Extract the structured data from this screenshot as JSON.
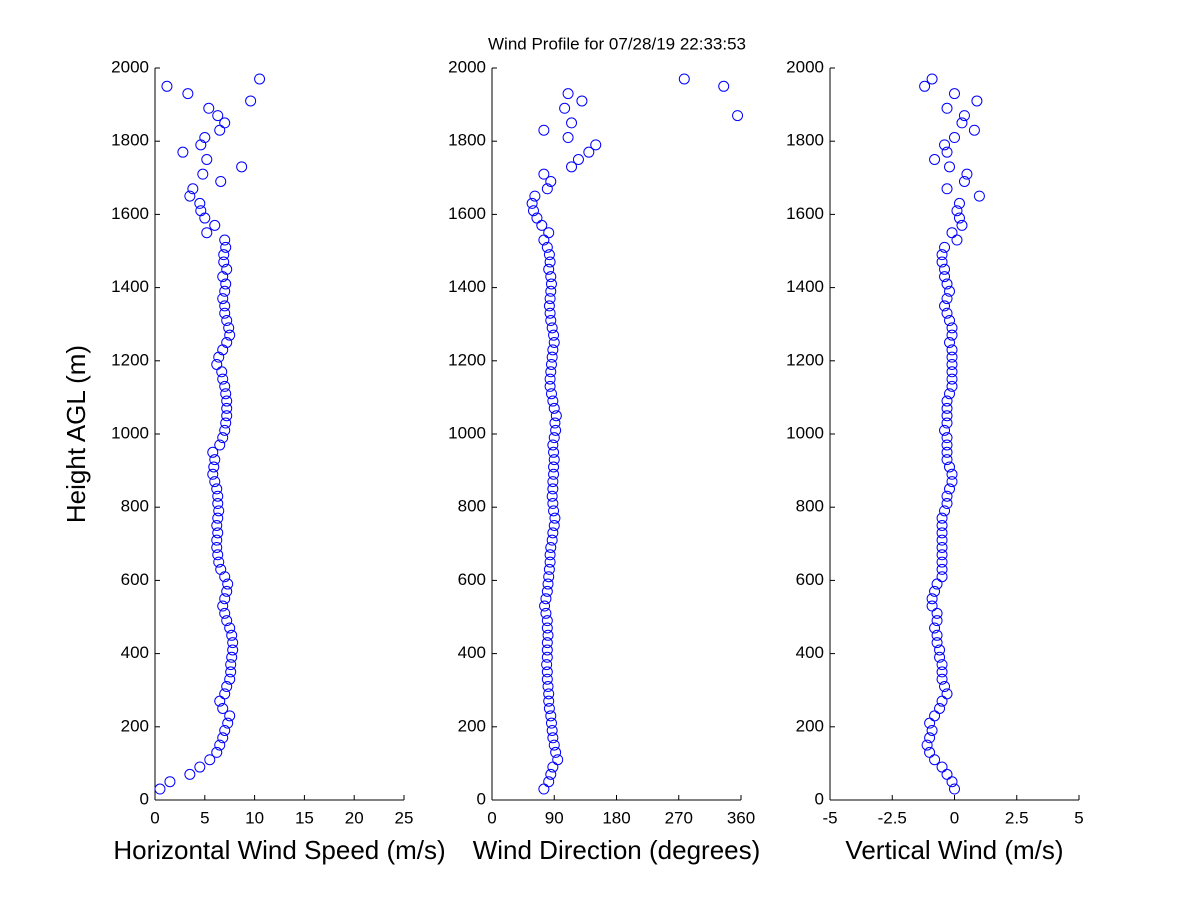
{
  "chart_data": [
    {
      "type": "scatter",
      "title": "Wind Profile for  07/28/19 22:33:53",
      "xlabel": "Horizontal Wind Speed (m/s)",
      "ylabel": "Height AGL (m)",
      "color": "#0000ff",
      "xlim": [
        0,
        25
      ],
      "xticks": [
        0,
        5,
        10,
        15,
        20,
        25
      ],
      "ylim": [
        0,
        2000
      ],
      "yticks": [
        0,
        200,
        400,
        600,
        800,
        1000,
        1200,
        1400,
        1600,
        1800,
        2000
      ],
      "x": [
        0.5,
        1.5,
        3.5,
        4.5,
        5.5,
        6.2,
        6.5,
        6.8,
        7,
        7.3,
        7.5,
        6.8,
        6.5,
        7,
        7.2,
        7.5,
        7.6,
        7.6,
        7.7,
        7.8,
        7.8,
        7.7,
        7.5,
        7.2,
        7.0,
        6.8,
        7,
        7.2,
        7.3,
        7,
        6.6,
        6.4,
        6.3,
        6.2,
        6.2,
        6.3,
        6.2,
        6.3,
        6.4,
        6.3,
        6.3,
        6.2,
        6.0,
        5.8,
        5.9,
        6.0,
        5.8,
        6.5,
        6.8,
        7,
        7.1,
        7.2,
        7.2,
        7.2,
        7.1,
        7.0,
        6.8,
        6.7,
        6.2,
        6.4,
        6.8,
        7.2,
        7.5,
        7.4,
        7.2,
        7,
        7,
        6.8,
        7,
        7.1,
        6.8,
        7.2,
        6.9,
        6.9,
        7.1,
        7.0,
        5.2,
        6.0,
        5.0,
        4.6,
        4.5,
        3.5,
        3.8,
        6.6,
        4.8,
        8.7,
        5.2,
        2.8,
        4.6,
        5.0,
        6.5,
        7.0,
        6.3,
        5.4,
        9.6,
        3.3,
        1.2,
        10.5
      ],
      "y": [
        30,
        50,
        70,
        90,
        110,
        130,
        150,
        170,
        190,
        210,
        230,
        250,
        270,
        290,
        310,
        330,
        350,
        370,
        390,
        410,
        430,
        450,
        470,
        490,
        510,
        530,
        550,
        570,
        590,
        610,
        630,
        650,
        670,
        690,
        710,
        730,
        750,
        770,
        790,
        810,
        830,
        850,
        870,
        890,
        910,
        930,
        950,
        970,
        990,
        1010,
        1030,
        1050,
        1070,
        1090,
        1110,
        1130,
        1150,
        1170,
        1190,
        1210,
        1230,
        1250,
        1270,
        1290,
        1310,
        1330,
        1350,
        1370,
        1390,
        1410,
        1430,
        1450,
        1470,
        1490,
        1510,
        1530,
        1550,
        1570,
        1590,
        1610,
        1630,
        1650,
        1670,
        1690,
        1710,
        1730,
        1750,
        1770,
        1790,
        1810,
        1830,
        1850,
        1870,
        1890,
        1910,
        1930,
        1950,
        1970
      ]
    },
    {
      "type": "scatter",
      "xlabel": "Wind Direction (degrees)",
      "color": "#0000ff",
      "xlim": [
        0,
        360
      ],
      "xticks": [
        0,
        90,
        180,
        270,
        360
      ],
      "ylim": [
        0,
        2000
      ],
      "yticks": [
        0,
        200,
        400,
        600,
        800,
        1000,
        1200,
        1400,
        1600,
        1800,
        2000
      ],
      "x": [
        75,
        82,
        85,
        88,
        95,
        92,
        90,
        88,
        87,
        86,
        85,
        83,
        82,
        82,
        81,
        80,
        80,
        79,
        80,
        80,
        80,
        81,
        80,
        80,
        78,
        76,
        78,
        80,
        81,
        82,
        83,
        84,
        84,
        85,
        87,
        88,
        90,
        91,
        89,
        88,
        87,
        88,
        88,
        89,
        89,
        90,
        89,
        88,
        90,
        92,
        91,
        93,
        90,
        88,
        86,
        84,
        84,
        85,
        86,
        87,
        88,
        90,
        89,
        87,
        85,
        84,
        83,
        84,
        85,
        86,
        85,
        82,
        84,
        83,
        80,
        75,
        82,
        72,
        65,
        60,
        58,
        62,
        80,
        85,
        75,
        115,
        125,
        140,
        150,
        110,
        75,
        115,
        355,
        105,
        130,
        110,
        335,
        278
      ],
      "y": [
        30,
        50,
        70,
        90,
        110,
        130,
        150,
        170,
        190,
        210,
        230,
        250,
        270,
        290,
        310,
        330,
        350,
        370,
        390,
        410,
        430,
        450,
        470,
        490,
        510,
        530,
        550,
        570,
        590,
        610,
        630,
        650,
        670,
        690,
        710,
        730,
        750,
        770,
        790,
        810,
        830,
        850,
        870,
        890,
        910,
        930,
        950,
        970,
        990,
        1010,
        1030,
        1050,
        1070,
        1090,
        1110,
        1130,
        1150,
        1170,
        1190,
        1210,
        1230,
        1250,
        1270,
        1290,
        1310,
        1330,
        1350,
        1370,
        1390,
        1410,
        1430,
        1450,
        1470,
        1490,
        1510,
        1530,
        1550,
        1570,
        1590,
        1610,
        1630,
        1650,
        1670,
        1690,
        1710,
        1730,
        1750,
        1770,
        1790,
        1810,
        1830,
        1850,
        1870,
        1890,
        1910,
        1930,
        1950,
        1970
      ]
    },
    {
      "type": "scatter",
      "xlabel": "Vertical Wind (m/s)",
      "color": "#0000ff",
      "xlim": [
        -5,
        5
      ],
      "xticks": [
        -5,
        -2.5,
        0,
        2.5,
        5
      ],
      "ylim": [
        0,
        2000
      ],
      "yticks": [
        0,
        200,
        400,
        600,
        800,
        1000,
        1200,
        1400,
        1600,
        1800,
        2000
      ],
      "x": [
        0.0,
        -0.1,
        -0.3,
        -0.5,
        -0.8,
        -1.0,
        -1.1,
        -1.0,
        -0.9,
        -1.0,
        -0.8,
        -0.6,
        -0.5,
        -0.3,
        -0.4,
        -0.5,
        -0.5,
        -0.5,
        -0.6,
        -0.6,
        -0.7,
        -0.7,
        -0.8,
        -0.7,
        -0.7,
        -0.9,
        -0.9,
        -0.8,
        -0.7,
        -0.5,
        -0.5,
        -0.5,
        -0.5,
        -0.5,
        -0.5,
        -0.5,
        -0.5,
        -0.5,
        -0.4,
        -0.3,
        -0.3,
        -0.2,
        -0.1,
        -0.1,
        -0.2,
        -0.3,
        -0.3,
        -0.3,
        -0.3,
        -0.4,
        -0.3,
        -0.3,
        -0.3,
        -0.3,
        -0.2,
        -0.1,
        -0.1,
        -0.1,
        -0.1,
        -0.1,
        -0.1,
        -0.2,
        -0.1,
        -0.1,
        -0.2,
        -0.3,
        -0.4,
        -0.3,
        -0.2,
        -0.3,
        -0.4,
        -0.4,
        -0.5,
        -0.5,
        -0.4,
        0.1,
        -0.1,
        0.3,
        0.2,
        0.1,
        0.2,
        1.0,
        -0.3,
        0.4,
        0.5,
        -0.2,
        -0.8,
        -0.3,
        -0.4,
        0,
        0.8,
        0.3,
        0.4,
        -0.3,
        0.9,
        0,
        -1.2,
        -0.9
      ],
      "y": [
        30,
        50,
        70,
        90,
        110,
        130,
        150,
        170,
        190,
        210,
        230,
        250,
        270,
        290,
        310,
        330,
        350,
        370,
        390,
        410,
        430,
        450,
        470,
        490,
        510,
        530,
        550,
        570,
        590,
        610,
        630,
        650,
        670,
        690,
        710,
        730,
        750,
        770,
        790,
        810,
        830,
        850,
        870,
        890,
        910,
        930,
        950,
        970,
        990,
        1010,
        1030,
        1050,
        1070,
        1090,
        1110,
        1130,
        1150,
        1170,
        1190,
        1210,
        1230,
        1250,
        1270,
        1290,
        1310,
        1330,
        1350,
        1370,
        1390,
        1410,
        1430,
        1450,
        1470,
        1490,
        1510,
        1530,
        1550,
        1570,
        1590,
        1610,
        1630,
        1650,
        1670,
        1690,
        1710,
        1730,
        1750,
        1770,
        1790,
        1810,
        1830,
        1850,
        1870,
        1890,
        1910,
        1930,
        1950,
        1970
      ]
    }
  ]
}
